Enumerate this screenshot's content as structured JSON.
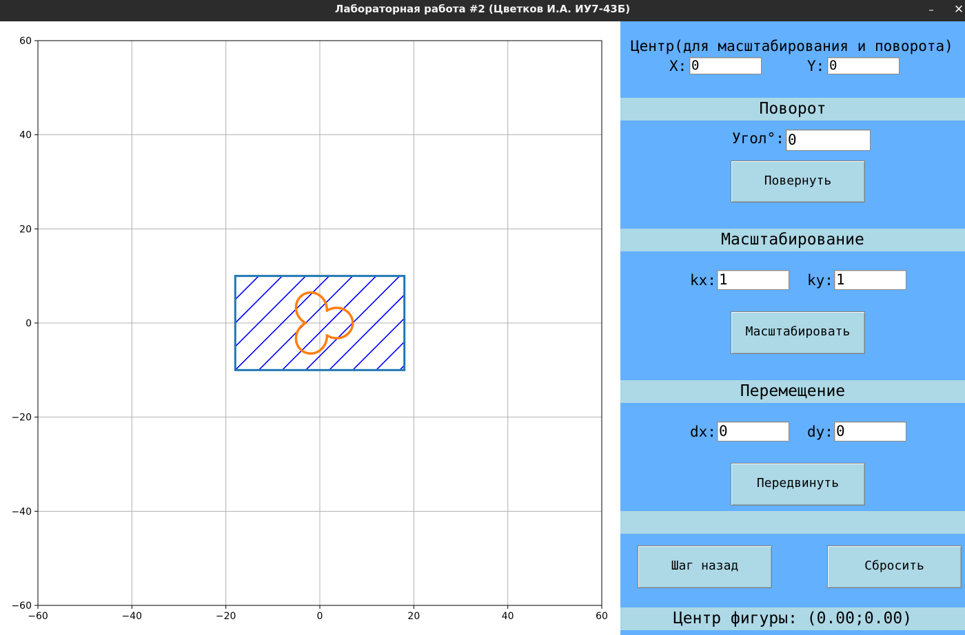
{
  "window": {
    "title": "Лабораторная работа #2 (Цветков И.А. ИУ7-43Б)",
    "minimize_glyph": "–",
    "close_glyph": "✕"
  },
  "plot": {
    "xlim": [
      -60,
      60
    ],
    "ylim": [
      -60,
      60
    ],
    "x_ticks": [
      "−60",
      "−40",
      "−20",
      "0",
      "20",
      "40",
      "60"
    ],
    "y_ticks": [
      "60",
      "40",
      "20",
      "0",
      "−20",
      "−40",
      "−60"
    ],
    "grid": true,
    "rectangle": {
      "x_min": -18,
      "x_max": 18,
      "y_min": -10,
      "y_max": 10,
      "color": "#1f77b4"
    },
    "hatch": {
      "color": "#0000ff",
      "direction": "down-right",
      "step": 5
    },
    "clover": {
      "color": "#ff7f0e",
      "center": [
        0,
        0
      ],
      "lobe_radius": 4,
      "lobes": 3
    }
  },
  "panel": {
    "center_title": "Центр(для масштабирования и поворота)",
    "x_label": "X:",
    "x_value": "0",
    "y_label": "Y:",
    "y_value": "0",
    "rotation_header": "Поворот",
    "angle_label": "Угол°:",
    "angle_value": "0",
    "rotate_button": "Повернуть",
    "scale_header": "Масштабирование",
    "kx_label": "kx:",
    "kx_value": "1",
    "ky_label": "ky:",
    "ky_value": "1",
    "scale_button": "Масштабировать",
    "move_header": "Перемещение",
    "dx_label": "dx:",
    "dx_value": "0",
    "dy_label": "dy:",
    "dy_value": "0",
    "move_button": "Передвинуть",
    "undo_button": "Шаг назад",
    "reset_button": "Сбросить",
    "figure_center": "Центр фигуры: (0.00;0.00)"
  }
}
